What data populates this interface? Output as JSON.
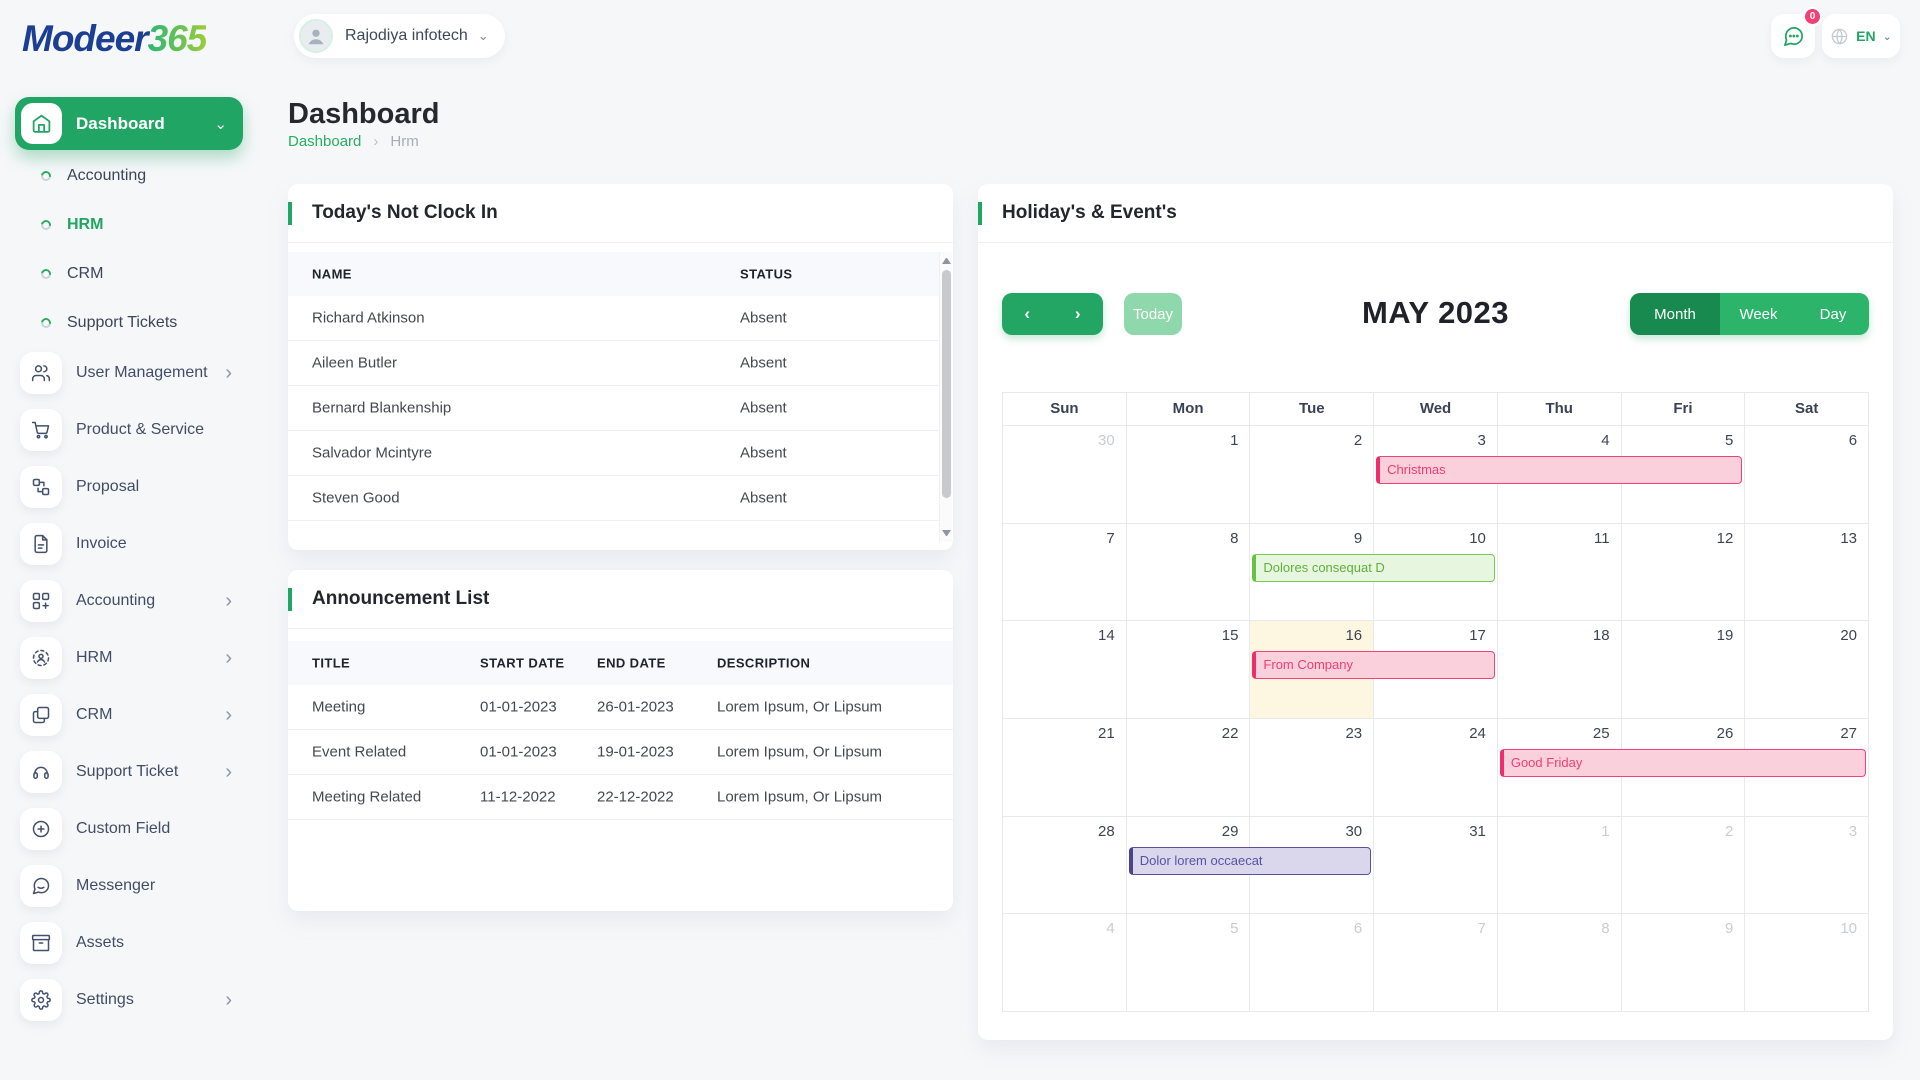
{
  "theme": {
    "primary_green": "#21a565",
    "active_view_green": "#188a4f",
    "view_green": "#2cb46b",
    "today_button_green": "#8ed8ab",
    "badge_pink": "#f43f74",
    "brand_blue": "#1c3f94",
    "brand_green_gradient": [
      "#2bb673",
      "#9ccb3b"
    ]
  },
  "brand": {
    "primary": "Modeer",
    "accent": "365"
  },
  "topbar": {
    "company_label": "Rajodiya infotech",
    "notification_badge": "0",
    "language_label": "EN"
  },
  "page": {
    "title": "Dashboard",
    "breadcrumb_root": "Dashboard",
    "breadcrumb_current": "Hrm"
  },
  "sidebar": {
    "dashboard_label": "Dashboard",
    "sub_items": [
      {
        "label": "Accounting",
        "active": false
      },
      {
        "label": "HRM",
        "active": true
      },
      {
        "label": "CRM",
        "active": false
      },
      {
        "label": "Support Tickets",
        "active": false
      }
    ],
    "items": [
      {
        "label": "User Management",
        "icon": "users",
        "chevron": true
      },
      {
        "label": "Product & Service",
        "icon": "cart",
        "chevron": false
      },
      {
        "label": "Proposal",
        "icon": "flow",
        "chevron": false
      },
      {
        "label": "Invoice",
        "icon": "file",
        "chevron": false
      },
      {
        "label": "Accounting",
        "icon": "blocks",
        "chevron": true
      },
      {
        "label": "HRM",
        "icon": "person-target",
        "chevron": true
      },
      {
        "label": "CRM",
        "icon": "copy",
        "chevron": true
      },
      {
        "label": "Support Ticket",
        "icon": "headset",
        "chevron": true
      },
      {
        "label": "Custom Field",
        "icon": "plus-circle",
        "chevron": false
      },
      {
        "label": "Messenger",
        "icon": "chat",
        "chevron": false
      },
      {
        "label": "Assets",
        "icon": "archive",
        "chevron": false
      },
      {
        "label": "Settings",
        "icon": "gear",
        "chevron": true
      }
    ]
  },
  "clockin_card": {
    "title": "Today's Not Clock In",
    "columns": [
      "NAME",
      "STATUS"
    ],
    "rows": [
      {
        "name": "Richard Atkinson",
        "status": "Absent"
      },
      {
        "name": "Aileen Butler",
        "status": "Absent"
      },
      {
        "name": "Bernard Blankenship",
        "status": "Absent"
      },
      {
        "name": "Salvador Mcintyre",
        "status": "Absent"
      },
      {
        "name": "Steven Good",
        "status": "Absent"
      }
    ]
  },
  "announcement_card": {
    "title": "Announcement List",
    "columns": [
      "TITLE",
      "START DATE",
      "END DATE",
      "DESCRIPTION"
    ],
    "rows": [
      {
        "title": "Meeting",
        "start": "01-01-2023",
        "end": "26-01-2023",
        "description": "Lorem Ipsum, Or Lipsum"
      },
      {
        "title": "Event Related",
        "start": "01-01-2023",
        "end": "19-01-2023",
        "description": "Lorem Ipsum, Or Lipsum"
      },
      {
        "title": "Meeting Related",
        "start": "11-12-2022",
        "end": "22-12-2022",
        "description": "Lorem Ipsum, Or Lipsum"
      }
    ]
  },
  "calendar": {
    "card_title": "Holiday's & Event's",
    "toolbar": {
      "today_label": "Today",
      "title": "MAY 2023",
      "views": [
        "Month",
        "Week",
        "Day"
      ],
      "active_view": "Month"
    },
    "day_headers": [
      "Sun",
      "Mon",
      "Tue",
      "Wed",
      "Thu",
      "Fri",
      "Sat"
    ],
    "weeks": [
      [
        {
          "n": "30",
          "muted": true
        },
        {
          "n": "1",
          "muted": false
        },
        {
          "n": "2",
          "muted": false
        },
        {
          "n": "3",
          "muted": false
        },
        {
          "n": "4",
          "muted": false
        },
        {
          "n": "5",
          "muted": false
        },
        {
          "n": "6",
          "muted": false
        }
      ],
      [
        {
          "n": "7",
          "muted": false
        },
        {
          "n": "8",
          "muted": false
        },
        {
          "n": "9",
          "muted": false
        },
        {
          "n": "10",
          "muted": false
        },
        {
          "n": "11",
          "muted": false
        },
        {
          "n": "12",
          "muted": false
        },
        {
          "n": "13",
          "muted": false
        }
      ],
      [
        {
          "n": "14",
          "muted": false
        },
        {
          "n": "15",
          "muted": false
        },
        {
          "n": "16",
          "muted": false
        },
        {
          "n": "17",
          "muted": false
        },
        {
          "n": "18",
          "muted": false
        },
        {
          "n": "19",
          "muted": false
        },
        {
          "n": "20",
          "muted": false
        }
      ],
      [
        {
          "n": "21",
          "muted": false
        },
        {
          "n": "22",
          "muted": false
        },
        {
          "n": "23",
          "muted": false
        },
        {
          "n": "24",
          "muted": false
        },
        {
          "n": "25",
          "muted": false
        },
        {
          "n": "26",
          "muted": false
        },
        {
          "n": "27",
          "muted": false
        }
      ],
      [
        {
          "n": "28",
          "muted": false
        },
        {
          "n": "29",
          "muted": false
        },
        {
          "n": "30",
          "muted": false
        },
        {
          "n": "31",
          "muted": false
        },
        {
          "n": "1",
          "muted": true
        },
        {
          "n": "2",
          "muted": true
        },
        {
          "n": "3",
          "muted": true
        }
      ],
      [
        {
          "n": "4",
          "muted": true
        },
        {
          "n": "5",
          "muted": true
        },
        {
          "n": "6",
          "muted": true
        },
        {
          "n": "7",
          "muted": true
        },
        {
          "n": "8",
          "muted": true
        },
        {
          "n": "9",
          "muted": true
        },
        {
          "n": "10",
          "muted": true
        }
      ]
    ],
    "today_cell": {
      "week": 2,
      "col": 2
    },
    "today_bg": "#fdf7e1",
    "events": [
      {
        "label": "Christmas",
        "week": 0,
        "col": 3,
        "span": 3,
        "type": "pink"
      },
      {
        "label": "Dolores consequat D",
        "week": 1,
        "col": 2,
        "span": 2,
        "type": "green"
      },
      {
        "label": "From Company",
        "week": 2,
        "col": 2,
        "span": 2,
        "type": "pink"
      },
      {
        "label": "Good Friday",
        "week": 3,
        "col": 4,
        "span": 3,
        "type": "pink"
      },
      {
        "label": "Dolor lorem occaecat",
        "week": 4,
        "col": 1,
        "span": 2,
        "type": "purple"
      }
    ],
    "event_colors": {
      "pink": {
        "bg": "#fbd0dd",
        "border": "#f1437b",
        "border_left": "#ee2d6f",
        "text": "#ef3d72"
      },
      "green": {
        "bg": "#e6f6df",
        "border": "#76ca55",
        "border_left": "#67c145",
        "text": "#61b03f"
      },
      "purple": {
        "bg": "#dad7ec",
        "border": "#59519f",
        "border_left": "#4b4391",
        "text": "#5a52a1"
      }
    }
  }
}
